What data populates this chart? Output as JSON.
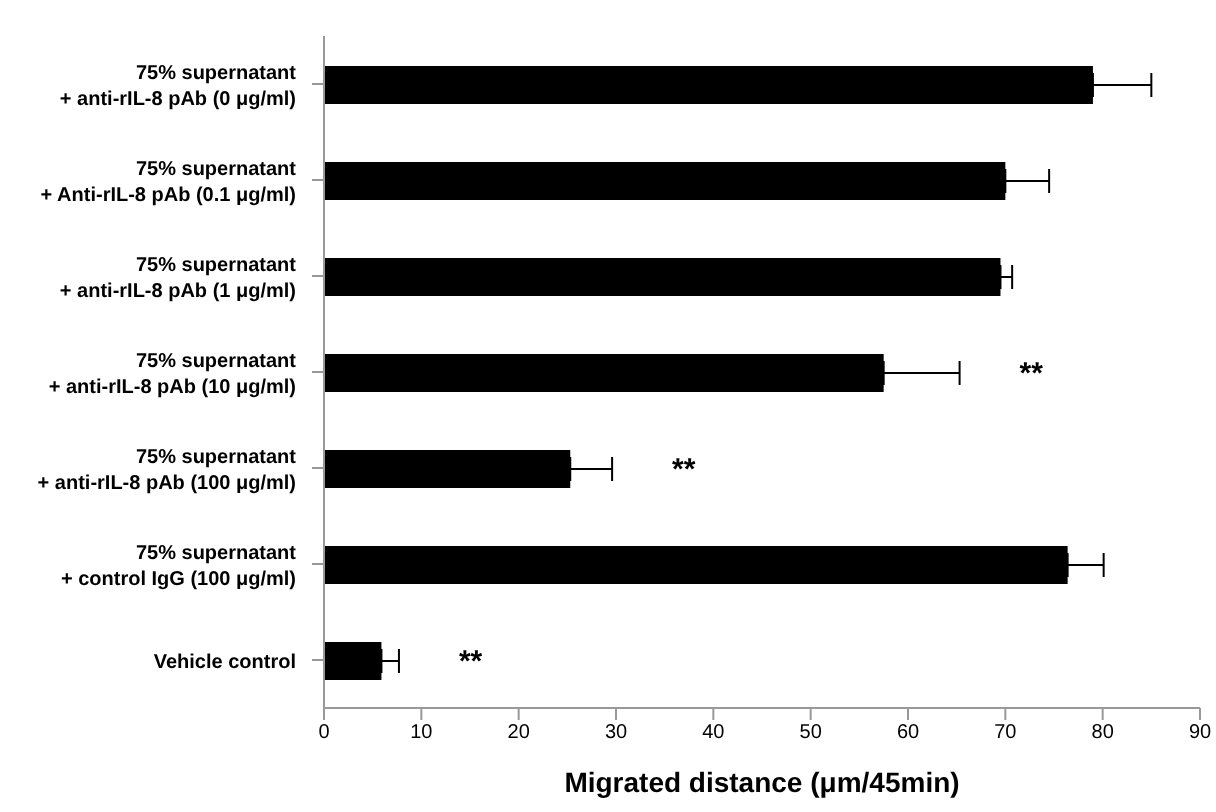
{
  "chart_data": {
    "type": "bar",
    "orientation": "horizontal",
    "xlabel": "Migrated distance (μm/45min)",
    "categories": [
      "75% supernatant\n+ anti-rIL-8 pAb (0 μg/ml)",
      "75% supernatant\n+ Anti-rIL-8 pAb (0.1 μg/ml)",
      "75% supernatant\n+ anti-rIL-8 pAb (1 μg/ml)",
      "75% supernatant\n+ anti-rIL-8 pAb (10 μg/ml)",
      "75% supernatant\n+ anti-rIL-8 pAb (100 μg/ml)",
      "75% supernatant\n+ control IgG  (100 μg/ml)",
      "Vehicle control"
    ],
    "values": [
      79,
      70,
      69.5,
      57.5,
      25.3,
      76.4,
      5.9
    ],
    "errors": [
      [
        79,
        85
      ],
      [
        70,
        74.5
      ],
      [
        69.5,
        70.7
      ],
      [
        57.5,
        65.3
      ],
      [
        25.3,
        29.6
      ],
      [
        76.4,
        80.1
      ],
      [
        5.9,
        7.7
      ]
    ],
    "color": "#000000",
    "xlim": [
      0,
      90
    ],
    "xticks": [
      0,
      10,
      20,
      30,
      40,
      50,
      60,
      70,
      80,
      90
    ],
    "grid": false,
    "legend": false,
    "annotations": [
      {
        "text": "**",
        "x": 65.3,
        "y": "75% supernatant\n+ anti-rIL-8 pAb (10 μg/ml)"
      },
      {
        "text": "**",
        "x": 29.6,
        "y": "75% supernatant\n+ anti-rIL-8 pAb (100 μg/ml)"
      },
      {
        "text": "**",
        "x": 7.7,
        "y": "Vehicle control"
      }
    ]
  }
}
